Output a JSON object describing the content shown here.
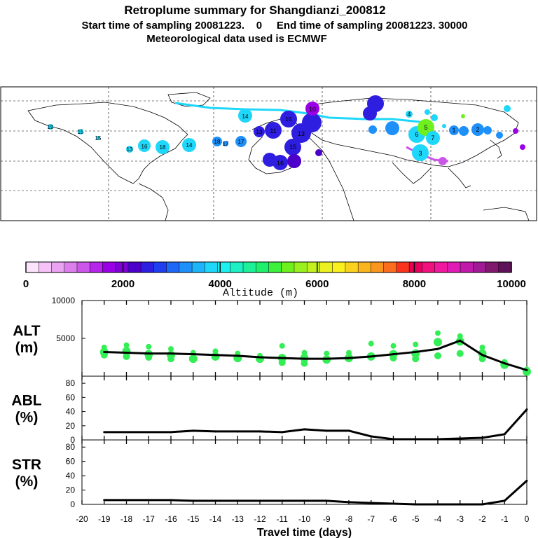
{
  "header": {
    "title": "Retroplume summary for Shangdianzi_200812",
    "line2": "Start time of sampling 20081223.    0     End time of sampling 20081223. 30000",
    "line3": "Meteorological data used is ECMWF"
  },
  "colorbar": {
    "label": "Altitude (m)",
    "ticks": [
      "0",
      "2000",
      "4000",
      "6000",
      "8000",
      "10000"
    ],
    "colors": [
      "#fbe3fb",
      "#f5c3f7",
      "#eaa3f1",
      "#dc7fed",
      "#cc55ea",
      "#b626ea",
      "#9a00e6",
      "#7e00d5",
      "#4d00c9",
      "#2e1ee0",
      "#1e3ef0",
      "#1e68f7",
      "#1e90fa",
      "#1eb4fa",
      "#1ed7fa",
      "#1ef0f0",
      "#1ef0c4",
      "#1ef09a",
      "#1ef06e",
      "#3cf03c",
      "#6ef01e",
      "#9af01e",
      "#c4f01e",
      "#ecf01e",
      "#faf01e",
      "#fad21e",
      "#fab41e",
      "#fa961e",
      "#fa6e1e",
      "#fa321e",
      "#e6005a",
      "#f0107e",
      "#f0189e",
      "#e01ab4",
      "#c01aaa",
      "#a01a96",
      "#80186e",
      "#5e1258"
    ]
  },
  "map": {
    "labels_west": [
      "19",
      "18",
      "16",
      "14",
      "13",
      "17",
      "18",
      "17",
      "14",
      "13",
      "15",
      "15",
      "16"
    ],
    "labels_east": [
      "10",
      "11",
      "13",
      "15",
      "16",
      "7",
      "6",
      "5",
      "4",
      "3",
      "2",
      "1",
      "0"
    ]
  },
  "chart_data": [
    {
      "type": "scatter",
      "name": "ALT",
      "ylabel": "ALT\n(m)",
      "ylabel_lines": [
        "ALT",
        "(m)"
      ],
      "ylim": [
        0,
        10000
      ],
      "yticks": [
        "5000",
        "10000"
      ],
      "xlim": [
        -20,
        0
      ],
      "line_color": "#000000",
      "point_color": "#33ee55",
      "x": [
        -19,
        -18,
        -17,
        -16,
        -15,
        -14,
        -13,
        -12,
        -11,
        -10,
        -9,
        -8,
        -7,
        -6,
        -5,
        -4,
        -3,
        -2,
        -1,
        0
      ],
      "values": [
        3200,
        3100,
        3000,
        3000,
        2900,
        2800,
        2700,
        2500,
        2400,
        2300,
        2300,
        2400,
        2600,
        2900,
        3200,
        3600,
        4700,
        2800,
        1700,
        800
      ],
      "clusters": [
        [
          3800,
          3200,
          2800
        ],
        [
          4100,
          3300,
          2600
        ],
        [
          3900,
          2900,
          2500
        ],
        [
          3600,
          2800,
          2300
        ],
        [
          3100,
          2300
        ],
        [
          3300,
          2600
        ],
        [
          3000,
          2400
        ],
        [
          2700,
          2300
        ],
        [
          4000,
          2400,
          1800
        ],
        [
          3100,
          2400,
          1700
        ],
        [
          3000,
          2200
        ],
        [
          3100,
          2400
        ],
        [
          4300,
          2600
        ],
        [
          4000,
          2900,
          2400
        ],
        [
          4200,
          3000,
          2300
        ],
        [
          5700,
          4500,
          2700
        ],
        [
          5300,
          4600,
          3000
        ],
        [
          3800,
          3000,
          2300
        ],
        [
          1900,
          1500
        ],
        [
          900,
          600
        ]
      ]
    },
    {
      "type": "line",
      "name": "ABL",
      "ylabel_lines": [
        "ABL",
        "(%)"
      ],
      "ylim": [
        0,
        90
      ],
      "yticks": [
        "0",
        "20",
        "40",
        "60",
        "80"
      ],
      "xlim": [
        -20,
        0
      ],
      "x": [
        -19,
        -18,
        -17,
        -16,
        -15,
        -14,
        -13,
        -12,
        -11,
        -10,
        -9,
        -8,
        -7,
        -6,
        -5,
        -4,
        -3,
        -2,
        -1,
        0
      ],
      "values": [
        11,
        11,
        11,
        11,
        13,
        12,
        12,
        12,
        11,
        15,
        13,
        13,
        5,
        1,
        1,
        1,
        2,
        3,
        8,
        43
      ]
    },
    {
      "type": "line",
      "name": "STR",
      "ylabel_lines": [
        "STR",
        "(%)"
      ],
      "ylim": [
        0,
        90
      ],
      "yticks": [
        "0",
        "20",
        "40",
        "60",
        "80"
      ],
      "xlim": [
        -20,
        0
      ],
      "xlabel": "Travel time (days)",
      "xticks": [
        "-20",
        "-19",
        "-18",
        "-17",
        "-16",
        "-15",
        "-14",
        "-13",
        "-12",
        "-11",
        "-10",
        "-9",
        "-8",
        "-7",
        "-6",
        "-5",
        "-4",
        "-3",
        "-2",
        "-1",
        "0"
      ],
      "x": [
        -19,
        -18,
        -17,
        -16,
        -15,
        -14,
        -13,
        -12,
        -11,
        -10,
        -9,
        -8,
        -7,
        -6,
        -5,
        -4,
        -3,
        -2,
        -1,
        0
      ],
      "values": [
        6,
        6,
        6,
        6,
        5,
        5,
        5,
        5,
        5,
        5,
        5,
        3,
        2,
        1,
        0,
        0,
        0,
        0,
        5,
        33
      ]
    }
  ]
}
